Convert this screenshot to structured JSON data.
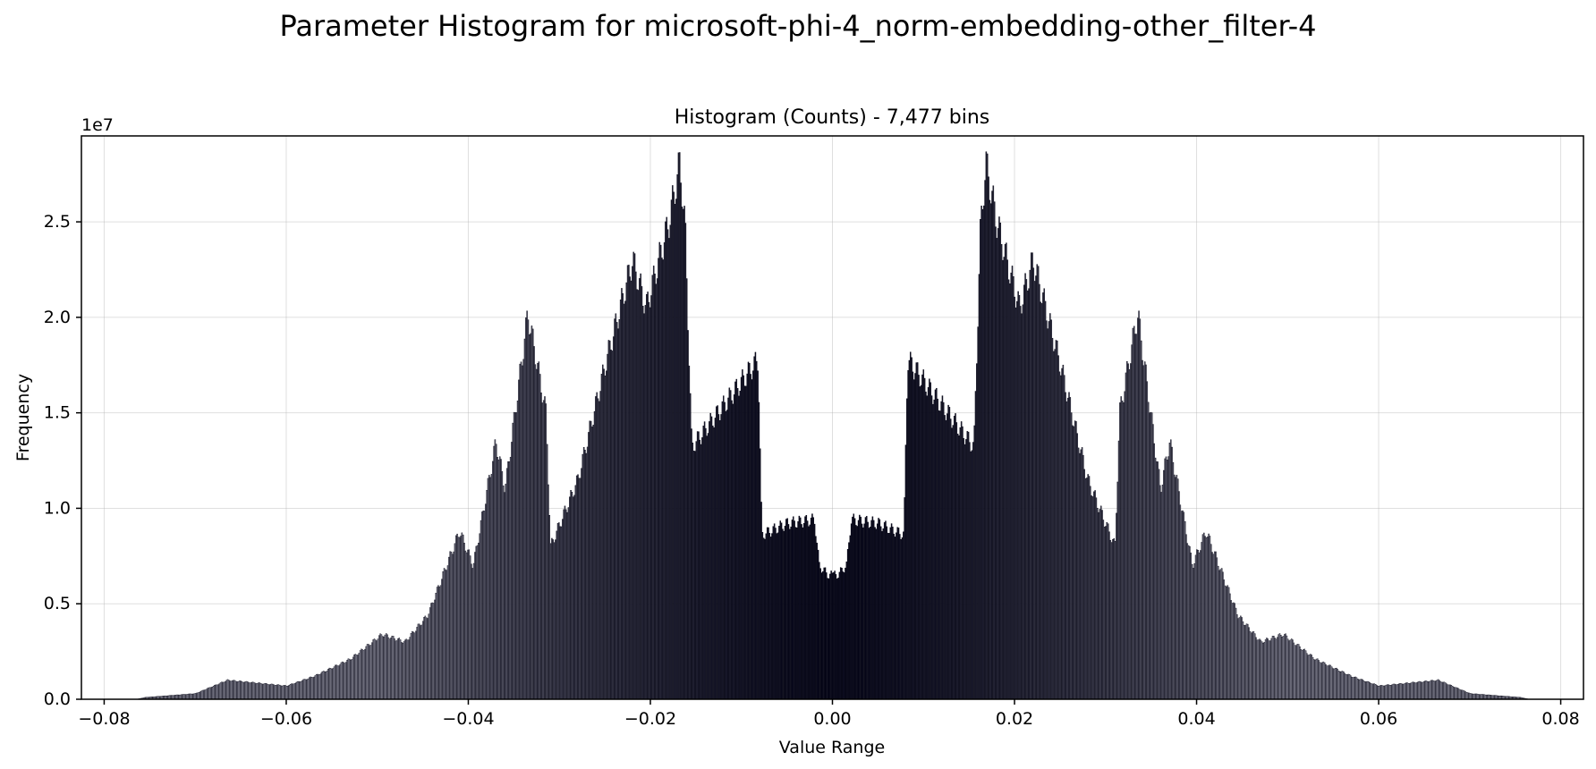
{
  "chart_data": {
    "type": "bar",
    "title": "Parameter Histogram for microsoft-phi-4_norm-embedding-other_filter-4",
    "subtitle": "Histogram (Counts) - 7,477 bins",
    "xlabel": "Value Range",
    "ylabel": "Frequency",
    "y_scale_label": "1e7",
    "xlim": [
      -0.0825,
      0.0825
    ],
    "ylim": [
      0,
      29500000
    ],
    "grid": true,
    "x_ticks": [
      -0.08,
      -0.06,
      -0.04,
      -0.02,
      0.0,
      0.02,
      0.04,
      0.06,
      0.08
    ],
    "x_tick_labels": [
      "−0.08",
      "−0.06",
      "−0.04",
      "−0.02",
      "0.00",
      "0.02",
      "0.04",
      "0.06",
      "0.08"
    ],
    "y_ticks": [
      0,
      5000000,
      10000000,
      15000000,
      20000000,
      25000000
    ],
    "y_tick_labels": [
      "0.0",
      "0.5",
      "1.0",
      "1.5",
      "2.0",
      "2.5"
    ],
    "bar_color_dark": "#050518",
    "bar_color_light": "#9a9aa8",
    "distribution_right_half": [
      {
        "x": 0.0005,
        "y": 6500000
      },
      {
        "x": 0.0015,
        "y": 7000000
      },
      {
        "x": 0.002,
        "y": 9400000
      },
      {
        "x": 0.005,
        "y": 9200000
      },
      {
        "x": 0.0078,
        "y": 8600000
      },
      {
        "x": 0.0082,
        "y": 17800000
      },
      {
        "x": 0.011,
        "y": 16000000
      },
      {
        "x": 0.0155,
        "y": 13200000
      },
      {
        "x": 0.0162,
        "y": 24500000
      },
      {
        "x": 0.0168,
        "y": 28100000
      },
      {
        "x": 0.018,
        "y": 25000000
      },
      {
        "x": 0.0205,
        "y": 20500000
      },
      {
        "x": 0.022,
        "y": 23000000
      },
      {
        "x": 0.025,
        "y": 17500000
      },
      {
        "x": 0.028,
        "y": 11500000
      },
      {
        "x": 0.031,
        "y": 8000000
      },
      {
        "x": 0.0315,
        "y": 15000000
      },
      {
        "x": 0.0335,
        "y": 20200000
      },
      {
        "x": 0.036,
        "y": 11000000
      },
      {
        "x": 0.037,
        "y": 13500000
      },
      {
        "x": 0.0395,
        "y": 7000000
      },
      {
        "x": 0.041,
        "y": 8800000
      },
      {
        "x": 0.0445,
        "y": 4400000
      },
      {
        "x": 0.047,
        "y": 3000000
      },
      {
        "x": 0.0495,
        "y": 3400000
      },
      {
        "x": 0.053,
        "y": 2100000
      },
      {
        "x": 0.057,
        "y": 1200000
      },
      {
        "x": 0.06,
        "y": 700000
      },
      {
        "x": 0.0665,
        "y": 1000000
      },
      {
        "x": 0.07,
        "y": 300000
      },
      {
        "x": 0.0755,
        "y": 100000
      },
      {
        "x": 0.0765,
        "y": 0
      }
    ]
  }
}
